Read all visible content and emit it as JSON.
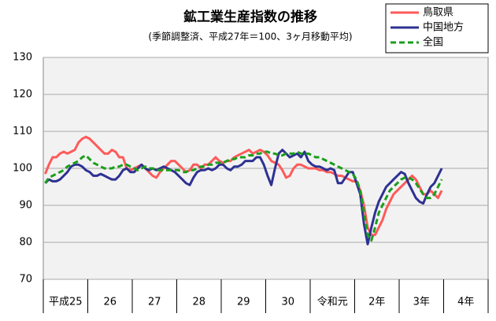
{
  "chart_data": {
    "type": "line",
    "title": "鉱工業生産指数の推移",
    "subtitle": "(季節調整済、平成27年＝100、3ヶ月移動平均)",
    "categories": [
      "平成25",
      null,
      null,
      null,
      null,
      null,
      null,
      null,
      null,
      null,
      null,
      null,
      "26",
      null,
      null,
      null,
      null,
      null,
      null,
      null,
      null,
      null,
      null,
      null,
      "27",
      null,
      null,
      null,
      null,
      null,
      null,
      null,
      null,
      null,
      null,
      null,
      "28",
      null,
      null,
      null,
      null,
      null,
      null,
      null,
      null,
      null,
      null,
      null,
      "29",
      null,
      null,
      null,
      null,
      null,
      null,
      null,
      null,
      null,
      null,
      null,
      "30",
      null,
      null,
      null,
      null,
      null,
      null,
      null,
      null,
      null,
      null,
      null,
      "令和元",
      null,
      null,
      null,
      null,
      null,
      null,
      null,
      null,
      null,
      null,
      null,
      "2年",
      null,
      null,
      null,
      null,
      null,
      null,
      null,
      null,
      null,
      null,
      null,
      "3年",
      null,
      null,
      null,
      null,
      null,
      null,
      null,
      null,
      null,
      null,
      null,
      "4年",
      null,
      null,
      null,
      null,
      null,
      null,
      null,
      null,
      null,
      null,
      null
    ],
    "series": [
      {
        "name": "鳥取県",
        "color": "#ff5a5a",
        "dash": false,
        "values": [
          98.5,
          101,
          103,
          103,
          104,
          104.5,
          104,
          104.5,
          105,
          107,
          108,
          108.5,
          108,
          107,
          106,
          105,
          104,
          104,
          105,
          104.5,
          103,
          103,
          100,
          99.5,
          100,
          100.5,
          101,
          100,
          99,
          98,
          97.5,
          99,
          100,
          101,
          102,
          102,
          101,
          100,
          99,
          99.5,
          101,
          101,
          100,
          101,
          101,
          102,
          103,
          102,
          101.5,
          102,
          102,
          103,
          103.5,
          104,
          104.5,
          105,
          104,
          104.5,
          105,
          104.5,
          103.5,
          102,
          101.5,
          101,
          99.5,
          97.5,
          98,
          100,
          101,
          101,
          100.5,
          100,
          100,
          100,
          99.5,
          99.5,
          99,
          99,
          98.5,
          98,
          98,
          97.5,
          97,
          96.5,
          96.5,
          94,
          90,
          84,
          82,
          82,
          84,
          86,
          89,
          91,
          93,
          94,
          95,
          96,
          97,
          98,
          97,
          95,
          93,
          93,
          94,
          93,
          92,
          94,
          null,
          null,
          null,
          null,
          null,
          null,
          null,
          null,
          null,
          null,
          null,
          null
        ]
      },
      {
        "name": "中国地方",
        "color": "#2e3192",
        "dash": false,
        "values": [
          96,
          97,
          96.5,
          96.5,
          97,
          98,
          99,
          100.5,
          101,
          101,
          100.5,
          99.5,
          99,
          98,
          98,
          98.5,
          98,
          97.5,
          97,
          97,
          98,
          99.5,
          100,
          99,
          99,
          100,
          101,
          100,
          99.5,
          100,
          99.5,
          100,
          100.5,
          100,
          99.5,
          99,
          98,
          97,
          96,
          95.5,
          97.5,
          99,
          99.5,
          99.5,
          100,
          99.5,
          100,
          101,
          101,
          100,
          99.5,
          100.5,
          100.5,
          101,
          102,
          102,
          102,
          103,
          103,
          101,
          98,
          95.5,
          100,
          104,
          105,
          104,
          103,
          103.5,
          104,
          103,
          104.5,
          102,
          101,
          100.5,
          100.5,
          100,
          99.5,
          100,
          99.5,
          96,
          96,
          97.5,
          99,
          99,
          96,
          93,
          85,
          79.5,
          84,
          88,
          91,
          93,
          95,
          96,
          97,
          98,
          99,
          98.5,
          96,
          94,
          92,
          91,
          90.5,
          93,
          95,
          96,
          98,
          100,
          null,
          null,
          null,
          null,
          null,
          null,
          null,
          null,
          null,
          null,
          null,
          null
        ]
      },
      {
        "name": "全国",
        "color": "#1a9e1a",
        "dash": true,
        "values": [
          96,
          97.5,
          98,
          98.5,
          99,
          99.5,
          100.5,
          101,
          101.5,
          102,
          103,
          103.5,
          102.5,
          101.5,
          101,
          100.5,
          100,
          100,
          100,
          100.5,
          100.5,
          101,
          101,
          100.5,
          100,
          99.5,
          100,
          100.5,
          100,
          100,
          99.5,
          99.5,
          99.5,
          99.5,
          99.5,
          99.5,
          99.5,
          99,
          99,
          99.5,
          99.5,
          100,
          100.5,
          100.5,
          101,
          101,
          101.5,
          101.5,
          101.5,
          102,
          102.5,
          102.5,
          103,
          103,
          103,
          103.5,
          103.5,
          104,
          104,
          104.5,
          104.5,
          104,
          104,
          103.5,
          103.5,
          104,
          104,
          104,
          104.5,
          104,
          104,
          104,
          103.5,
          103,
          103,
          102.5,
          102,
          101.5,
          101,
          100.5,
          100,
          99.5,
          99,
          98.5,
          97,
          94,
          88,
          82,
          80.5,
          84,
          88,
          90,
          92,
          94,
          95,
          96,
          97,
          97.5,
          97.5,
          97,
          96,
          94.5,
          93,
          92,
          92,
          93,
          95,
          97,
          null,
          null,
          null,
          null,
          null,
          null,
          null,
          null,
          null,
          null,
          null,
          null
        ]
      }
    ],
    "ylim": [
      70,
      130
    ],
    "yticks": [
      70,
      80,
      90,
      100,
      110,
      120,
      130
    ],
    "grid": true,
    "legend": "top-right"
  }
}
